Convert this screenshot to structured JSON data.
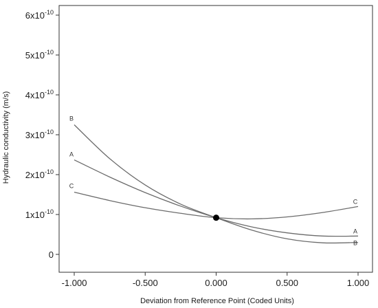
{
  "chart_data": {
    "type": "line",
    "xlabel": "Deviation from Reference Point (Coded Units)",
    "ylabel": "Hydraulic conductivity (m/s)",
    "xlim": [
      -1.0,
      1.0
    ],
    "ylim": [
      0,
      6e-10
    ],
    "x_ticks": [
      "-1.000",
      "-0.500",
      "0.000",
      "0.500",
      "1.000"
    ],
    "y_ticks": [
      {
        "value": 0,
        "mantissa": "0",
        "exponent": ""
      },
      {
        "value": 1e-10,
        "mantissa": "1x10",
        "exponent": "-10"
      },
      {
        "value": 2e-10,
        "mantissa": "2x10",
        "exponent": "-10"
      },
      {
        "value": 3e-10,
        "mantissa": "3x10",
        "exponent": "-10"
      },
      {
        "value": 4e-10,
        "mantissa": "4x10",
        "exponent": "-10"
      },
      {
        "value": 5e-10,
        "mantissa": "5x10",
        "exponent": "-10"
      },
      {
        "value": 6e-10,
        "mantissa": "6x10",
        "exponent": "-10"
      }
    ],
    "reference_point": {
      "x": 0.0,
      "y": 9.2e-11
    },
    "series": [
      {
        "name": "A",
        "x": [
          -1.0,
          -0.75,
          -0.5,
          -0.25,
          0.0,
          0.25,
          0.5,
          0.75,
          1.0
        ],
        "y": [
          2.37e-10,
          1.94e-10,
          1.55e-10,
          1.21e-10,
          9.2e-11,
          6.9e-11,
          5.4e-11,
          4.6e-11,
          4.6e-11
        ]
      },
      {
        "name": "B",
        "x": [
          -1.0,
          -0.75,
          -0.5,
          -0.25,
          0.0,
          0.25,
          0.5,
          0.75,
          1.0
        ],
        "y": [
          3.25e-10,
          2.4e-10,
          1.74e-10,
          1.26e-10,
          9.2e-11,
          6.1e-11,
          3.9e-11,
          2.9e-11,
          3e-11
        ]
      },
      {
        "name": "C",
        "x": [
          -1.0,
          -0.75,
          -0.5,
          -0.25,
          0.0,
          0.25,
          0.5,
          0.75,
          1.0
        ],
        "y": [
          1.56e-10,
          1.35e-10,
          1.17e-10,
          1.03e-10,
          9.2e-11,
          8.9e-11,
          9.4e-11,
          1.05e-10,
          1.2e-10
        ]
      }
    ],
    "grid": false,
    "legend": "none"
  },
  "style": {
    "curve_color": "#6b6b6b",
    "point_color": "#000000",
    "axis_color": "#333333"
  }
}
